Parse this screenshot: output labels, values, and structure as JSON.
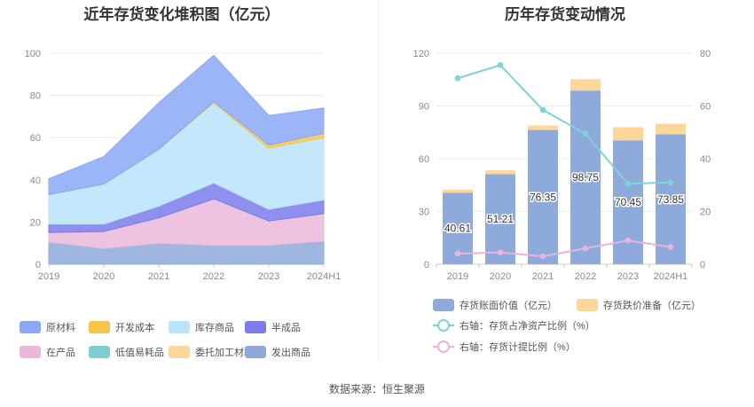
{
  "source": "数据来源：恒生聚源",
  "chart_data": [
    {
      "type": "area",
      "stacked": true,
      "title": "近年存货变化堆积图（亿元）",
      "categories": [
        "2019",
        "2020",
        "2021",
        "2022",
        "2023",
        "2024H1"
      ],
      "ylim": [
        0,
        100
      ],
      "yticks": [
        "0",
        "20",
        "40",
        "60",
        "80",
        "100"
      ],
      "grid": true,
      "legend_position": "bottom",
      "series": [
        {
          "name": "发出商品",
          "color": "#8eaadb",
          "values": [
            10.5,
            7.5,
            10,
            9,
            9,
            11
          ]
        },
        {
          "name": "委托加工材料",
          "color": "#fdd79a",
          "values": [
            0,
            0,
            0,
            0,
            0,
            0
          ]
        },
        {
          "name": "低值易耗品",
          "color": "#7ecfcf",
          "values": [
            0,
            0,
            0,
            0,
            0,
            0
          ]
        },
        {
          "name": "在产品",
          "color": "#ebb8dc",
          "values": [
            4.5,
            8,
            12,
            22,
            11.5,
            13
          ]
        },
        {
          "name": "半成品",
          "color": "#7b7bea",
          "values": [
            4,
            3.5,
            5.5,
            7.5,
            5.5,
            6.5
          ]
        },
        {
          "name": "库存商品",
          "color": "#b8e3fa",
          "values": [
            14,
            19,
            27,
            38,
            29,
            29.5
          ]
        },
        {
          "name": "开发成本",
          "color": "#f7c44a",
          "values": [
            0,
            0,
            0,
            0.5,
            1.5,
            2
          ]
        },
        {
          "name": "原材料",
          "color": "#8aa8f5",
          "values": [
            7.5,
            13,
            22,
            22,
            14,
            12
          ]
        }
      ],
      "legend_order": [
        "原材料",
        "开发成本",
        "库存商品",
        "半成品",
        "在产品",
        "低值易耗品",
        "委托加工材料",
        "发出商品"
      ]
    },
    {
      "type": "bar",
      "title": "历年存货变动情况",
      "categories": [
        "2019",
        "2020",
        "2021",
        "2022",
        "2023",
        "2024H1"
      ],
      "ylim": [
        0,
        120
      ],
      "yticks": [
        "0",
        "30",
        "60",
        "90",
        "120"
      ],
      "y2lim": [
        0,
        80
      ],
      "y2ticks": [
        "0",
        "20",
        "40",
        "60",
        "80"
      ],
      "grid": true,
      "legend_position": "bottom",
      "bar_series": [
        {
          "name": "存货账面价值（亿元）",
          "color": "#8eaadb",
          "values": [
            40.61,
            51.21,
            76.35,
            98.75,
            70.45,
            73.85
          ],
          "labels": [
            "40.61",
            "51.21",
            "76.35",
            "98.75",
            "70.45",
            "73.85"
          ]
        },
        {
          "name": "存货跌价准备（亿元）",
          "color": "#fdd79a",
          "values": [
            1.8,
            2.2,
            2.5,
            6.5,
            7.5,
            6
          ]
        }
      ],
      "line_series": [
        {
          "name": "右轴：存货占净资产比例（%）",
          "color": "#7ed3d6",
          "values": [
            70.5,
            75.5,
            58.5,
            49.5,
            30.5,
            31
          ]
        },
        {
          "name": "右轴：存货计提比例（%）",
          "color": "#e6b4dc",
          "values": [
            4,
            4.5,
            3,
            6,
            9,
            6.5
          ]
        }
      ]
    }
  ]
}
